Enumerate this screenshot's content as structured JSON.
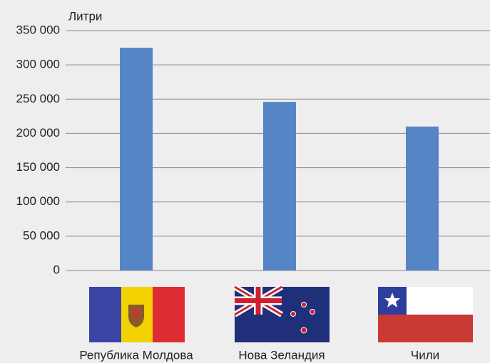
{
  "chart_data": {
    "type": "bar",
    "y_label": "Литри",
    "categories": [
      "Република Молдова",
      "Нова Зеландия",
      "Чили"
    ],
    "values": [
      325000,
      246000,
      210000
    ],
    "color": "#5585c5",
    "ylim": [
      0,
      350000
    ],
    "yticks": [
      0,
      {
        "value": 50000,
        "label": "50 000"
      },
      {
        "value": 100000,
        "label": "100 000"
      },
      {
        "value": 150000,
        "label": "150 000"
      },
      {
        "value": 200000,
        "label": "200 000"
      },
      {
        "value": 250000,
        "label": "250 000"
      },
      {
        "value": 300000,
        "label": "300 000"
      },
      {
        "value": 350000,
        "label": "350 000"
      }
    ],
    "grid": true
  }
}
